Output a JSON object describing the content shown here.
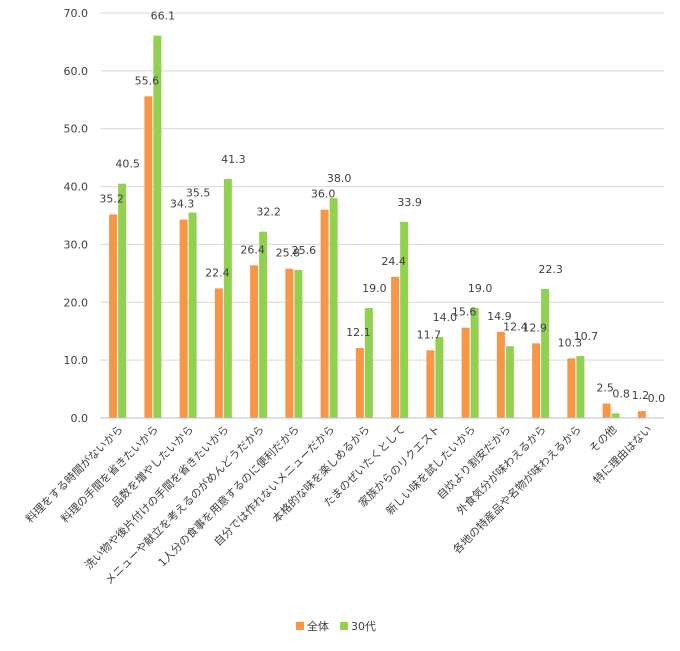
{
  "chart_data": {
    "type": "bar",
    "title": "",
    "xlabel": "",
    "ylabel": "",
    "ylim": [
      0,
      70
    ],
    "yticks": [
      "0.0",
      "10.0",
      "20.0",
      "30.0",
      "40.0",
      "50.0",
      "60.0",
      "70.0"
    ],
    "grid": true,
    "legend_position": "bottom",
    "categories": [
      "料理をする時間がないから",
      "料理の手間を省きたいから",
      "品数を増やしたいから",
      "洗い物や後片付けの手間を省きたいから",
      "メニューや献立を考えるのがめんどうだから",
      "1人分の食事を用意するのに便利だから",
      "自分では作れないメニューだから",
      "本格的な味を楽しめるから",
      "たまのぜいたくとして",
      "家族からのリクエスト",
      "新しい味を試したいから",
      "自炊より割安だから",
      "外食気分が味わえるから",
      "各地の特産品や名物が味わえるから",
      "その他",
      "特に理由はない"
    ],
    "series": [
      {
        "name": "全体",
        "color": "#F79646",
        "values": [
          35.2,
          55.6,
          34.3,
          22.4,
          26.4,
          25.8,
          36.0,
          12.1,
          24.4,
          11.7,
          15.6,
          14.9,
          12.9,
          10.3,
          2.5,
          1.2
        ],
        "labels": [
          "35.2",
          "55.6",
          "34.3",
          "22.4",
          "26.4",
          "25.8",
          "36.0",
          "12.1",
          "24.4",
          "11.7",
          "15.6",
          "14.9",
          "12.9",
          "10.3",
          "2.5",
          "1.2"
        ]
      },
      {
        "name": "30代",
        "color": "#92D050",
        "values": [
          40.5,
          66.1,
          35.5,
          41.3,
          32.2,
          25.6,
          38.0,
          19.0,
          33.9,
          14.0,
          19.0,
          12.4,
          22.3,
          10.7,
          0.8,
          0.0
        ],
        "labels": [
          "40.5",
          "66.1",
          "35.5",
          "41.3",
          "32.2",
          "25.6",
          "38.0",
          "19.0",
          "33.9",
          "14.0",
          "19.0",
          "12.4",
          "22.3",
          "10.7",
          "0.8",
          "0.0"
        ],
        "highlight_indices": [
          7,
          8,
          12
        ],
        "highlight_color": "#FF0000"
      }
    ]
  }
}
